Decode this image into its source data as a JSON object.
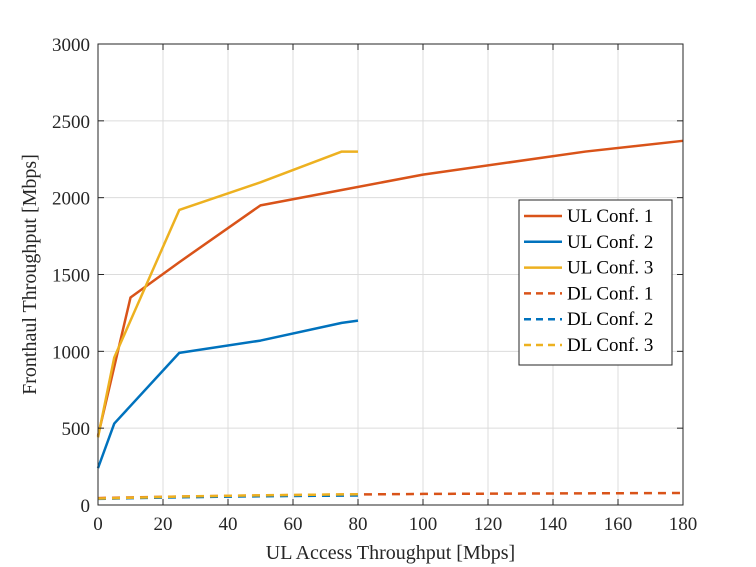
{
  "chart_data": {
    "type": "line",
    "title": "",
    "xlabel": "UL Access Throughput [Mbps]",
    "ylabel": "Fronthaul Throughput [Mbps]",
    "xlim": [
      0,
      180
    ],
    "ylim": [
      0,
      3000
    ],
    "xticks": [
      "0",
      "20",
      "40",
      "60",
      "80",
      "100",
      "120",
      "140",
      "160",
      "180"
    ],
    "yticks": [
      "0",
      "500",
      "1000",
      "1500",
      "2000",
      "2500",
      "3000"
    ],
    "grid": true,
    "legend_position": "right",
    "series": [
      {
        "name": "UL Conf. 1",
        "color": "#D95319",
        "dash": "solid",
        "x": [
          0,
          10,
          25,
          50,
          75,
          100,
          150,
          180
        ],
        "y": [
          450,
          1350,
          1580,
          1950,
          2050,
          2150,
          2300,
          2370
        ]
      },
      {
        "name": "UL Conf. 2",
        "color": "#0072BD",
        "dash": "solid",
        "x": [
          0,
          5,
          25,
          50,
          75,
          80
        ],
        "y": [
          240,
          530,
          990,
          1070,
          1185,
          1200
        ]
      },
      {
        "name": "UL Conf. 3",
        "color": "#EDB120",
        "dash": "solid",
        "x": [
          0,
          5,
          25,
          50,
          75,
          80
        ],
        "y": [
          440,
          960,
          1920,
          2100,
          2300,
          2300
        ]
      },
      {
        "name": "DL Conf. 1",
        "color": "#D95319",
        "dash": "dashed",
        "x": [
          0,
          25,
          50,
          75,
          100,
          150,
          180
        ],
        "y": [
          45,
          55,
          62,
          68,
          72,
          76,
          78
        ]
      },
      {
        "name": "DL Conf. 2",
        "color": "#0072BD",
        "dash": "dashed",
        "x": [
          0,
          25,
          50,
          80
        ],
        "y": [
          40,
          50,
          57,
          62
        ]
      },
      {
        "name": "DL Conf. 3",
        "color": "#EDB120",
        "dash": "dashed",
        "x": [
          0,
          25,
          50,
          80
        ],
        "y": [
          42,
          55,
          63,
          70
        ]
      }
    ]
  }
}
